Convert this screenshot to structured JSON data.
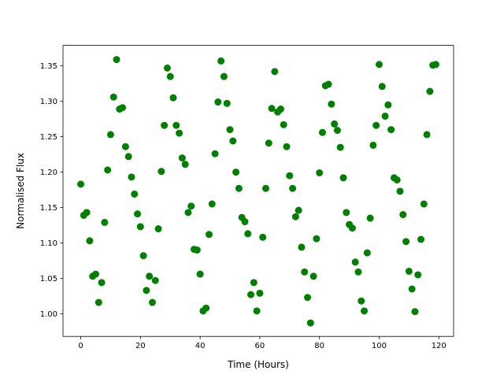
{
  "chart_data": {
    "type": "scatter",
    "x_label": "Time (Hours)",
    "y_label": "Normalised Flux",
    "color": "#008000",
    "x": [
      0,
      1,
      2,
      3,
      4,
      5,
      6,
      7,
      8,
      9,
      10,
      11,
      12,
      13,
      14,
      15,
      16,
      17,
      18,
      19,
      20,
      21,
      22,
      23,
      24,
      25,
      26,
      27,
      28,
      29,
      30,
      31,
      32,
      33,
      34,
      35,
      36,
      37,
      38,
      39,
      40,
      41,
      42,
      43,
      44,
      45,
      46,
      47,
      48,
      49,
      50,
      51,
      52,
      53,
      54,
      55,
      56,
      57,
      58,
      59,
      60,
      61,
      62,
      63,
      64,
      65,
      66,
      67,
      68,
      69,
      70,
      71,
      72,
      73,
      74,
      75,
      76,
      77,
      78,
      79,
      80,
      81,
      82,
      83,
      84,
      85,
      86,
      87,
      88,
      89,
      90,
      91,
      92,
      93,
      94,
      95,
      96,
      97,
      98,
      99,
      100,
      101,
      102,
      103,
      104,
      105,
      106,
      107,
      108,
      109,
      110,
      111,
      112,
      113,
      114,
      115,
      116,
      117,
      118,
      119
    ],
    "values": [
      1.183,
      1.139,
      1.143,
      1.103,
      1.053,
      1.056,
      1.016,
      1.044,
      1.129,
      1.203,
      1.253,
      1.306,
      1.359,
      1.289,
      1.291,
      1.236,
      1.222,
      1.193,
      1.169,
      1.141,
      1.123,
      1.082,
      1.033,
      1.053,
      1.016,
      1.047,
      1.12,
      1.201,
      1.266,
      1.347,
      1.335,
      1.305,
      1.266,
      1.255,
      1.22,
      1.211,
      1.143,
      1.152,
      1.091,
      1.09,
      1.056,
      1.004,
      1.008,
      1.112,
      1.155,
      1.226,
      1.299,
      1.357,
      1.335,
      1.297,
      1.26,
      1.244,
      1.2,
      1.177,
      1.136,
      1.13,
      1.113,
      1.027,
      1.044,
      1.004,
      1.029,
      1.108,
      1.177,
      1.241,
      1.29,
      1.342,
      1.285,
      1.289,
      1.267,
      1.236,
      1.195,
      1.177,
      1.137,
      1.146,
      1.094,
      1.059,
      1.023,
      0.987,
      1.053,
      1.106,
      1.199,
      1.256,
      1.322,
      1.324,
      1.296,
      1.268,
      1.259,
      1.235,
      1.192,
      1.143,
      1.126,
      1.121,
      1.073,
      1.059,
      1.018,
      1.004,
      1.086,
      1.135,
      1.238,
      1.266,
      1.352,
      1.321,
      1.279,
      1.295,
      1.26,
      1.192,
      1.189,
      1.173,
      1.14,
      1.102,
      1.06,
      1.035,
      1.003,
      1.055,
      1.105,
      1.155,
      1.253,
      1.314,
      1.351,
      1.352
    ],
    "xlim": [
      -5.95,
      124.95
    ],
    "ylim": [
      0.968,
      1.379
    ],
    "xticks": [
      0,
      20,
      40,
      60,
      80,
      100,
      120
    ],
    "yticks": [
      {
        "value": 1,
        "label": "1.00"
      },
      1.05,
      {
        "value": 1.1,
        "label": "1.10"
      },
      1.15,
      {
        "value": 1.2,
        "label": "1.20"
      },
      1.25,
      {
        "value": 1.3,
        "label": "1.30"
      },
      1.35
    ],
    "grid": false
  }
}
